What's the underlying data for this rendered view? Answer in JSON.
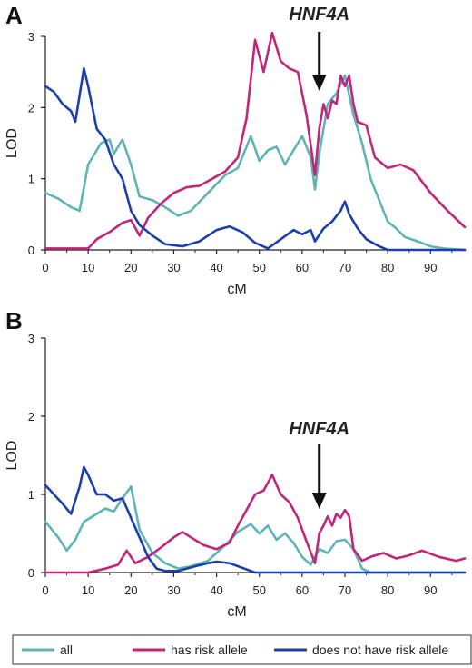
{
  "chart_data": [
    {
      "panel": "A",
      "type": "line",
      "xlabel": "cM",
      "ylabel": "LOD",
      "xlim": [
        0,
        98
      ],
      "ylim": [
        0,
        3
      ],
      "xticks": [
        "0",
        "10",
        "20",
        "30",
        "40",
        "50",
        "60",
        "70",
        "80",
        "90"
      ],
      "yticks": [
        "0",
        "1",
        "2",
        "3"
      ],
      "annotation": {
        "text": "HNF4A",
        "x": 64
      },
      "series": [
        {
          "name": "all",
          "color": "#5fb4b8",
          "points": [
            [
              0,
              0.8
            ],
            [
              3,
              0.72
            ],
            [
              6,
              0.6
            ],
            [
              8,
              0.55
            ],
            [
              10,
              1.2
            ],
            [
              13,
              1.5
            ],
            [
              15,
              1.55
            ],
            [
              16,
              1.35
            ],
            [
              18,
              1.55
            ],
            [
              20,
              1.2
            ],
            [
              22,
              0.75
            ],
            [
              25,
              0.7
            ],
            [
              28,
              0.6
            ],
            [
              31,
              0.48
            ],
            [
              34,
              0.55
            ],
            [
              38,
              0.8
            ],
            [
              42,
              1.05
            ],
            [
              45,
              1.15
            ],
            [
              48,
              1.6
            ],
            [
              50,
              1.25
            ],
            [
              52,
              1.4
            ],
            [
              54,
              1.45
            ],
            [
              56,
              1.2
            ],
            [
              58,
              1.4
            ],
            [
              60,
              1.6
            ],
            [
              62,
              1.3
            ],
            [
              63,
              0.85
            ],
            [
              64,
              1.35
            ],
            [
              66,
              2.05
            ],
            [
              68,
              2.2
            ],
            [
              70,
              2.45
            ],
            [
              72,
              1.9
            ],
            [
              74,
              1.5
            ],
            [
              76,
              1.0
            ],
            [
              78,
              0.7
            ],
            [
              80,
              0.4
            ],
            [
              82,
              0.3
            ],
            [
              84,
              0.18
            ],
            [
              87,
              0.12
            ],
            [
              90,
              0.05
            ],
            [
              93,
              0.02
            ],
            [
              98,
              0.0
            ]
          ]
        },
        {
          "name": "has risk allele",
          "color": "#c1267a",
          "points": [
            [
              0,
              0.02
            ],
            [
              8,
              0.02
            ],
            [
              10,
              0.02
            ],
            [
              12,
              0.15
            ],
            [
              15,
              0.25
            ],
            [
              18,
              0.38
            ],
            [
              20,
              0.42
            ],
            [
              22,
              0.2
            ],
            [
              24,
              0.45
            ],
            [
              27,
              0.65
            ],
            [
              30,
              0.8
            ],
            [
              33,
              0.88
            ],
            [
              36,
              0.9
            ],
            [
              39,
              1.0
            ],
            [
              42,
              1.1
            ],
            [
              45,
              1.3
            ],
            [
              47,
              1.85
            ],
            [
              49,
              2.95
            ],
            [
              51,
              2.5
            ],
            [
              53,
              3.05
            ],
            [
              55,
              2.65
            ],
            [
              57,
              2.55
            ],
            [
              59,
              2.5
            ],
            [
              61,
              1.9
            ],
            [
              63,
              1.05
            ],
            [
              64,
              1.7
            ],
            [
              65,
              2.05
            ],
            [
              66,
              1.85
            ],
            [
              67,
              2.1
            ],
            [
              68,
              2.05
            ],
            [
              69,
              2.45
            ],
            [
              70,
              2.3
            ],
            [
              71,
              2.45
            ],
            [
              72,
              2.05
            ],
            [
              73,
              1.8
            ],
            [
              75,
              1.75
            ],
            [
              77,
              1.3
            ],
            [
              80,
              1.15
            ],
            [
              83,
              1.2
            ],
            [
              86,
              1.12
            ],
            [
              90,
              0.8
            ],
            [
              94,
              0.55
            ],
            [
              98,
              0.32
            ]
          ]
        },
        {
          "name": "does not have risk allele",
          "color": "#1d3faa",
          "points": [
            [
              0,
              2.3
            ],
            [
              2,
              2.22
            ],
            [
              4,
              2.05
            ],
            [
              6,
              1.95
            ],
            [
              7,
              1.8
            ],
            [
              9,
              2.55
            ],
            [
              10,
              2.3
            ],
            [
              12,
              1.7
            ],
            [
              14,
              1.55
            ],
            [
              16,
              1.2
            ],
            [
              18,
              1.0
            ],
            [
              20,
              0.55
            ],
            [
              22,
              0.35
            ],
            [
              25,
              0.2
            ],
            [
              28,
              0.08
            ],
            [
              32,
              0.05
            ],
            [
              36,
              0.12
            ],
            [
              40,
              0.28
            ],
            [
              43,
              0.33
            ],
            [
              46,
              0.25
            ],
            [
              49,
              0.1
            ],
            [
              52,
              0.02
            ],
            [
              55,
              0.15
            ],
            [
              58,
              0.28
            ],
            [
              60,
              0.22
            ],
            [
              62,
              0.28
            ],
            [
              63,
              0.12
            ],
            [
              65,
              0.3
            ],
            [
              67,
              0.4
            ],
            [
              69,
              0.55
            ],
            [
              70,
              0.68
            ],
            [
              71,
              0.5
            ],
            [
              73,
              0.3
            ],
            [
              75,
              0.15
            ],
            [
              78,
              0.05
            ],
            [
              80,
              0.0
            ],
            [
              98,
              0.0
            ]
          ]
        }
      ]
    },
    {
      "panel": "B",
      "type": "line",
      "xlabel": "cM",
      "ylabel": "LOD",
      "xlim": [
        0,
        98
      ],
      "ylim": [
        0,
        3
      ],
      "xticks": [
        "0",
        "10",
        "20",
        "30",
        "40",
        "50",
        "60",
        "70",
        "80",
        "90"
      ],
      "yticks": [
        "0",
        "1",
        "2",
        "3"
      ],
      "annotation": {
        "text": "HNF4A",
        "x": 64
      },
      "series": [
        {
          "name": "all",
          "color": "#5fb4b8",
          "points": [
            [
              0,
              0.65
            ],
            [
              3,
              0.45
            ],
            [
              5,
              0.28
            ],
            [
              7,
              0.42
            ],
            [
              9,
              0.65
            ],
            [
              12,
              0.75
            ],
            [
              14,
              0.82
            ],
            [
              16,
              0.78
            ],
            [
              18,
              0.95
            ],
            [
              20,
              1.1
            ],
            [
              22,
              0.55
            ],
            [
              25,
              0.25
            ],
            [
              28,
              0.12
            ],
            [
              31,
              0.05
            ],
            [
              34,
              0.08
            ],
            [
              38,
              0.15
            ],
            [
              42,
              0.35
            ],
            [
              45,
              0.52
            ],
            [
              48,
              0.62
            ],
            [
              50,
              0.5
            ],
            [
              52,
              0.6
            ],
            [
              54,
              0.42
            ],
            [
              56,
              0.5
            ],
            [
              58,
              0.38
            ],
            [
              60,
              0.2
            ],
            [
              62,
              0.1
            ],
            [
              64,
              0.3
            ],
            [
              66,
              0.25
            ],
            [
              68,
              0.4
            ],
            [
              70,
              0.42
            ],
            [
              72,
              0.3
            ],
            [
              74,
              0.05
            ],
            [
              76,
              0.0
            ],
            [
              98,
              0.0
            ]
          ]
        },
        {
          "name": "has risk allele",
          "color": "#c1267a",
          "points": [
            [
              0,
              0.0
            ],
            [
              10,
              0.0
            ],
            [
              14,
              0.05
            ],
            [
              17,
              0.1
            ],
            [
              19,
              0.28
            ],
            [
              21,
              0.12
            ],
            [
              24,
              0.2
            ],
            [
              27,
              0.32
            ],
            [
              30,
              0.45
            ],
            [
              32,
              0.52
            ],
            [
              34,
              0.45
            ],
            [
              37,
              0.35
            ],
            [
              40,
              0.3
            ],
            [
              43,
              0.38
            ],
            [
              45,
              0.6
            ],
            [
              47,
              0.8
            ],
            [
              49,
              1.0
            ],
            [
              51,
              1.05
            ],
            [
              53,
              1.25
            ],
            [
              55,
              1.0
            ],
            [
              57,
              0.9
            ],
            [
              59,
              0.7
            ],
            [
              61,
              0.4
            ],
            [
              63,
              0.12
            ],
            [
              64,
              0.5
            ],
            [
              65,
              0.6
            ],
            [
              66,
              0.72
            ],
            [
              67,
              0.6
            ],
            [
              68,
              0.75
            ],
            [
              69,
              0.7
            ],
            [
              70,
              0.8
            ],
            [
              71,
              0.72
            ],
            [
              72,
              0.3
            ],
            [
              74,
              0.15
            ],
            [
              76,
              0.2
            ],
            [
              79,
              0.25
            ],
            [
              82,
              0.18
            ],
            [
              85,
              0.22
            ],
            [
              88,
              0.28
            ],
            [
              92,
              0.2
            ],
            [
              96,
              0.15
            ],
            [
              98,
              0.18
            ]
          ]
        },
        {
          "name": "does not have risk allele",
          "color": "#1d3faa",
          "points": [
            [
              0,
              1.12
            ],
            [
              2,
              1.0
            ],
            [
              4,
              0.88
            ],
            [
              6,
              0.75
            ],
            [
              8,
              1.1
            ],
            [
              9,
              1.35
            ],
            [
              10,
              1.25
            ],
            [
              12,
              1.0
            ],
            [
              14,
              1.0
            ],
            [
              16,
              0.92
            ],
            [
              18,
              0.95
            ],
            [
              20,
              0.7
            ],
            [
              22,
              0.45
            ],
            [
              24,
              0.2
            ],
            [
              26,
              0.05
            ],
            [
              28,
              0.02
            ],
            [
              31,
              0.02
            ],
            [
              35,
              0.08
            ],
            [
              38,
              0.12
            ],
            [
              40,
              0.14
            ],
            [
              43,
              0.12
            ],
            [
              46,
              0.06
            ],
            [
              49,
              0.0
            ],
            [
              98,
              0.0
            ]
          ]
        }
      ]
    }
  ],
  "legend": [
    {
      "label": "all",
      "color": "#5fb4b8"
    },
    {
      "label": "has risk allele",
      "color": "#c1267a"
    },
    {
      "label": "does not have risk allele",
      "color": "#1d3faa"
    }
  ]
}
